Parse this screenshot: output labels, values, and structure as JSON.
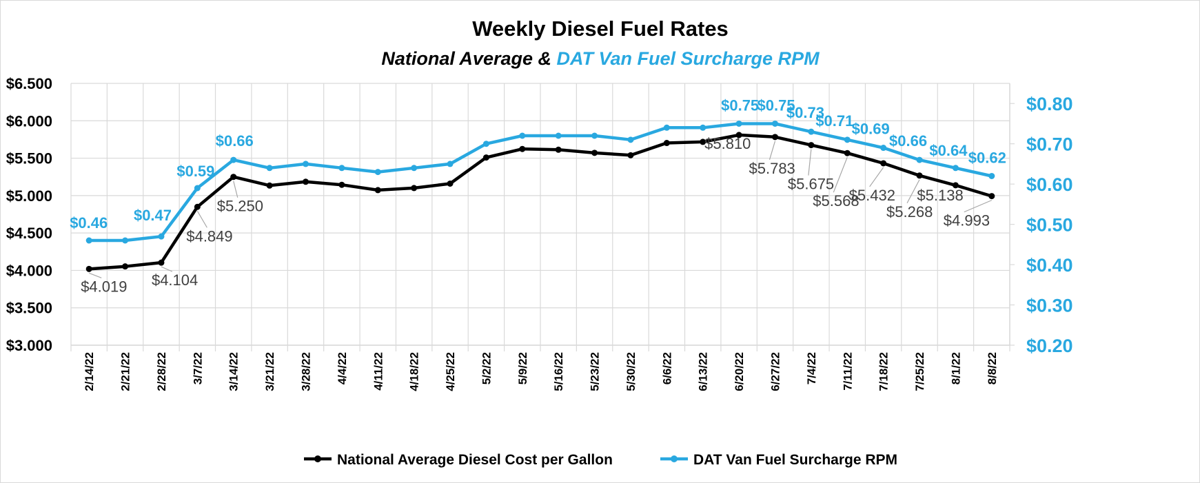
{
  "chart_data": {
    "type": "line",
    "title": "Weekly Diesel Fuel Rates",
    "subtitle_part1": "National Average & ",
    "subtitle_part2": "DAT Van Fuel Surcharge RPM",
    "categories": [
      "2/14/22",
      "2/21/22",
      "2/28/22",
      "3/7/22",
      "3/14/22",
      "3/21/22",
      "3/28/22",
      "4/4/22",
      "4/11/22",
      "4/18/22",
      "4/25/22",
      "5/2/22",
      "5/9/22",
      "5/16/22",
      "5/23/22",
      "5/30/22",
      "6/6/22",
      "6/13/22",
      "6/20/22",
      "6/27/22",
      "7/4/22",
      "7/11/22",
      "7/18/22",
      "7/25/22",
      "8/1/22",
      "8/8/22"
    ],
    "y_left": {
      "min": 3.0,
      "max": 6.5,
      "step": 0.5,
      "tick_labels": [
        "$3.000",
        "$3.500",
        "$4.000",
        "$4.500",
        "$5.000",
        "$5.500",
        "$6.000",
        "$6.500"
      ]
    },
    "y_right": {
      "min": 0.2,
      "max": 0.85,
      "step": 0.1,
      "tick_labels": [
        "$0.20",
        "$0.30",
        "$0.40",
        "$0.50",
        "$0.60",
        "$0.70",
        "$0.80"
      ]
    },
    "grid": true,
    "legend_position": "bottom",
    "series": [
      {
        "name": "National Average Diesel Cost per Gallon",
        "axis": "left",
        "color": "#000000",
        "values": [
          4.019,
          4.053,
          4.104,
          4.849,
          5.25,
          5.134,
          5.185,
          5.144,
          5.073,
          5.101,
          5.16,
          5.509,
          5.623,
          5.613,
          5.571,
          5.539,
          5.703,
          5.718,
          5.81,
          5.783,
          5.675,
          5.568,
          5.432,
          5.268,
          5.138,
          4.993
        ],
        "data_labels": [
          {
            "index": 0,
            "text": "$4.019"
          },
          {
            "index": 2,
            "text": "$4.104"
          },
          {
            "index": 3,
            "text": "$4.849"
          },
          {
            "index": 4,
            "text": "$5.250"
          },
          {
            "index": 18,
            "text": "$5.810"
          },
          {
            "index": 19,
            "text": "$5.783"
          },
          {
            "index": 20,
            "text": "$5.675"
          },
          {
            "index": 21,
            "text": "$5.568"
          },
          {
            "index": 22,
            "text": "$5.432"
          },
          {
            "index": 23,
            "text": "$5.268"
          },
          {
            "index": 24,
            "text": "$5.138"
          },
          {
            "index": 25,
            "text": "$4.993"
          }
        ]
      },
      {
        "name": "DAT Van Fuel Surcharge RPM",
        "axis": "right",
        "color": "#29a8e0",
        "values": [
          0.46,
          0.46,
          0.47,
          0.59,
          0.66,
          0.64,
          0.65,
          0.64,
          0.63,
          0.64,
          0.65,
          0.7,
          0.72,
          0.72,
          0.72,
          0.71,
          0.74,
          0.74,
          0.75,
          0.75,
          0.73,
          0.71,
          0.69,
          0.66,
          0.64,
          0.62
        ],
        "data_labels": [
          {
            "index": 0,
            "text": "$0.46"
          },
          {
            "index": 2,
            "text": "$0.47"
          },
          {
            "index": 3,
            "text": "$0.59"
          },
          {
            "index": 4,
            "text": "$0.66"
          },
          {
            "index": 18,
            "text": "$0.75"
          },
          {
            "index": 19,
            "text": "$0.75"
          },
          {
            "index": 20,
            "text": "$0.73"
          },
          {
            "index": 21,
            "text": "$0.71"
          },
          {
            "index": 22,
            "text": "$0.69"
          },
          {
            "index": 23,
            "text": "$0.66"
          },
          {
            "index": 24,
            "text": "$0.64"
          },
          {
            "index": 25,
            "text": "$0.62"
          }
        ]
      }
    ]
  }
}
